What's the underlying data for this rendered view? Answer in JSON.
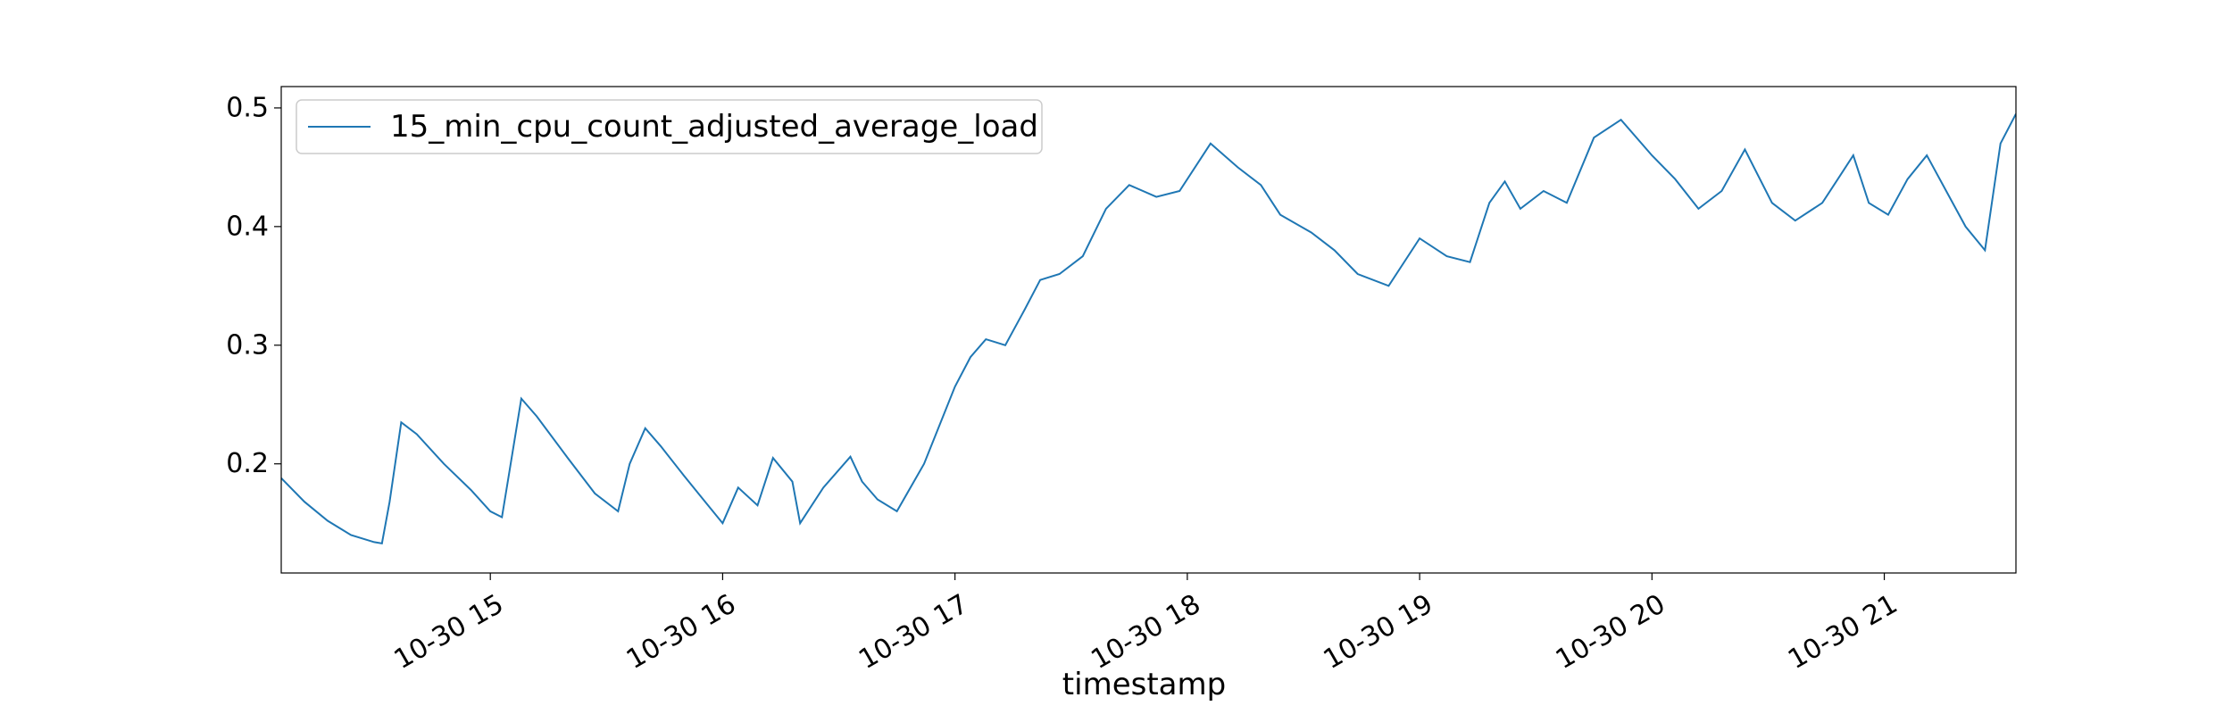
{
  "chart_data": {
    "type": "line",
    "title": "",
    "xlabel": "timestamp",
    "ylabel": "",
    "xlim": [
      "2023-10-30 14:06",
      "2023-10-30 21:34"
    ],
    "ylim": [
      0.108,
      0.518
    ],
    "x_ticks": [
      "2023-10-30 15:00",
      "2023-10-30 16:00",
      "2023-10-30 17:00",
      "2023-10-30 18:00",
      "2023-10-30 19:00",
      "2023-10-30 20:00",
      "2023-10-30 21:00"
    ],
    "x_tick_labels": [
      "10-30 15",
      "10-30 16",
      "10-30 17",
      "10-30 18",
      "10-30 19",
      "10-30 20",
      "10-30 21"
    ],
    "y_ticks": [
      0.2,
      0.3,
      0.4,
      0.5
    ],
    "y_tick_labels": [
      "0.2",
      "0.3",
      "0.4",
      "0.5"
    ],
    "grid": false,
    "legend_position": "upper-left",
    "color": "#1f77b4",
    "series": [
      {
        "name": "15_min_cpu_count_adjusted_average_load",
        "x": [
          "2023-10-30 14:06",
          "2023-10-30 14:12",
          "2023-10-30 14:18",
          "2023-10-30 14:24",
          "2023-10-30 14:30",
          "2023-10-30 14:32",
          "2023-10-30 14:34",
          "2023-10-30 14:37",
          "2023-10-30 14:41",
          "2023-10-30 14:48",
          "2023-10-30 14:55",
          "2023-10-30 15:00",
          "2023-10-30 15:03",
          "2023-10-30 15:05",
          "2023-10-30 15:08",
          "2023-10-30 15:12",
          "2023-10-30 15:20",
          "2023-10-30 15:27",
          "2023-10-30 15:33",
          "2023-10-30 15:36",
          "2023-10-30 15:40",
          "2023-10-30 15:44",
          "2023-10-30 15:50",
          "2023-10-30 15:55",
          "2023-10-30 16:00",
          "2023-10-30 16:04",
          "2023-10-30 16:09",
          "2023-10-30 16:13",
          "2023-10-30 16:18",
          "2023-10-30 16:20",
          "2023-10-30 16:26",
          "2023-10-30 16:33",
          "2023-10-30 16:36",
          "2023-10-30 16:40",
          "2023-10-30 16:45",
          "2023-10-30 16:52",
          "2023-10-30 17:00",
          "2023-10-30 17:04",
          "2023-10-30 17:08",
          "2023-10-30 17:13",
          "2023-10-30 17:18",
          "2023-10-30 17:22",
          "2023-10-30 17:27",
          "2023-10-30 17:33",
          "2023-10-30 17:39",
          "2023-10-30 17:45",
          "2023-10-30 17:52",
          "2023-10-30 17:58",
          "2023-10-30 18:06",
          "2023-10-30 18:13",
          "2023-10-30 18:19",
          "2023-10-30 18:24",
          "2023-10-30 18:32",
          "2023-10-30 18:38",
          "2023-10-30 18:44",
          "2023-10-30 18:52",
          "2023-10-30 19:00",
          "2023-10-30 19:07",
          "2023-10-30 19:13",
          "2023-10-30 19:18",
          "2023-10-30 19:22",
          "2023-10-30 19:26",
          "2023-10-30 19:32",
          "2023-10-30 19:38",
          "2023-10-30 19:45",
          "2023-10-30 19:52",
          "2023-10-30 20:00",
          "2023-10-30 20:06",
          "2023-10-30 20:12",
          "2023-10-30 20:18",
          "2023-10-30 20:24",
          "2023-10-30 20:31",
          "2023-10-30 20:37",
          "2023-10-30 20:44",
          "2023-10-30 20:48",
          "2023-10-30 20:52",
          "2023-10-30 20:56",
          "2023-10-30 21:01",
          "2023-10-30 21:06",
          "2023-10-30 21:11",
          "2023-10-30 21:16",
          "2023-10-30 21:21",
          "2023-10-30 21:26",
          "2023-10-30 21:30",
          "2023-10-30 21:34"
        ],
        "y": [
          0.188,
          0.168,
          0.152,
          0.14,
          0.134,
          0.133,
          0.168,
          0.235,
          0.225,
          0.2,
          0.178,
          0.16,
          0.155,
          0.195,
          0.255,
          0.24,
          0.205,
          0.175,
          0.16,
          0.2,
          0.23,
          0.215,
          0.19,
          0.17,
          0.15,
          0.18,
          0.165,
          0.205,
          0.185,
          0.15,
          0.18,
          0.206,
          0.185,
          0.17,
          0.16,
          0.2,
          0.265,
          0.29,
          0.305,
          0.3,
          0.33,
          0.355,
          0.36,
          0.375,
          0.415,
          0.435,
          0.425,
          0.43,
          0.47,
          0.45,
          0.435,
          0.41,
          0.395,
          0.38,
          0.36,
          0.35,
          0.39,
          0.375,
          0.37,
          0.42,
          0.438,
          0.415,
          0.43,
          0.42,
          0.475,
          0.49,
          0.46,
          0.44,
          0.415,
          0.43,
          0.465,
          0.42,
          0.405,
          0.42,
          0.44,
          0.46,
          0.42,
          0.41,
          0.44,
          0.46,
          0.43,
          0.4,
          0.38,
          0.47,
          0.495
        ]
      }
    ]
  }
}
